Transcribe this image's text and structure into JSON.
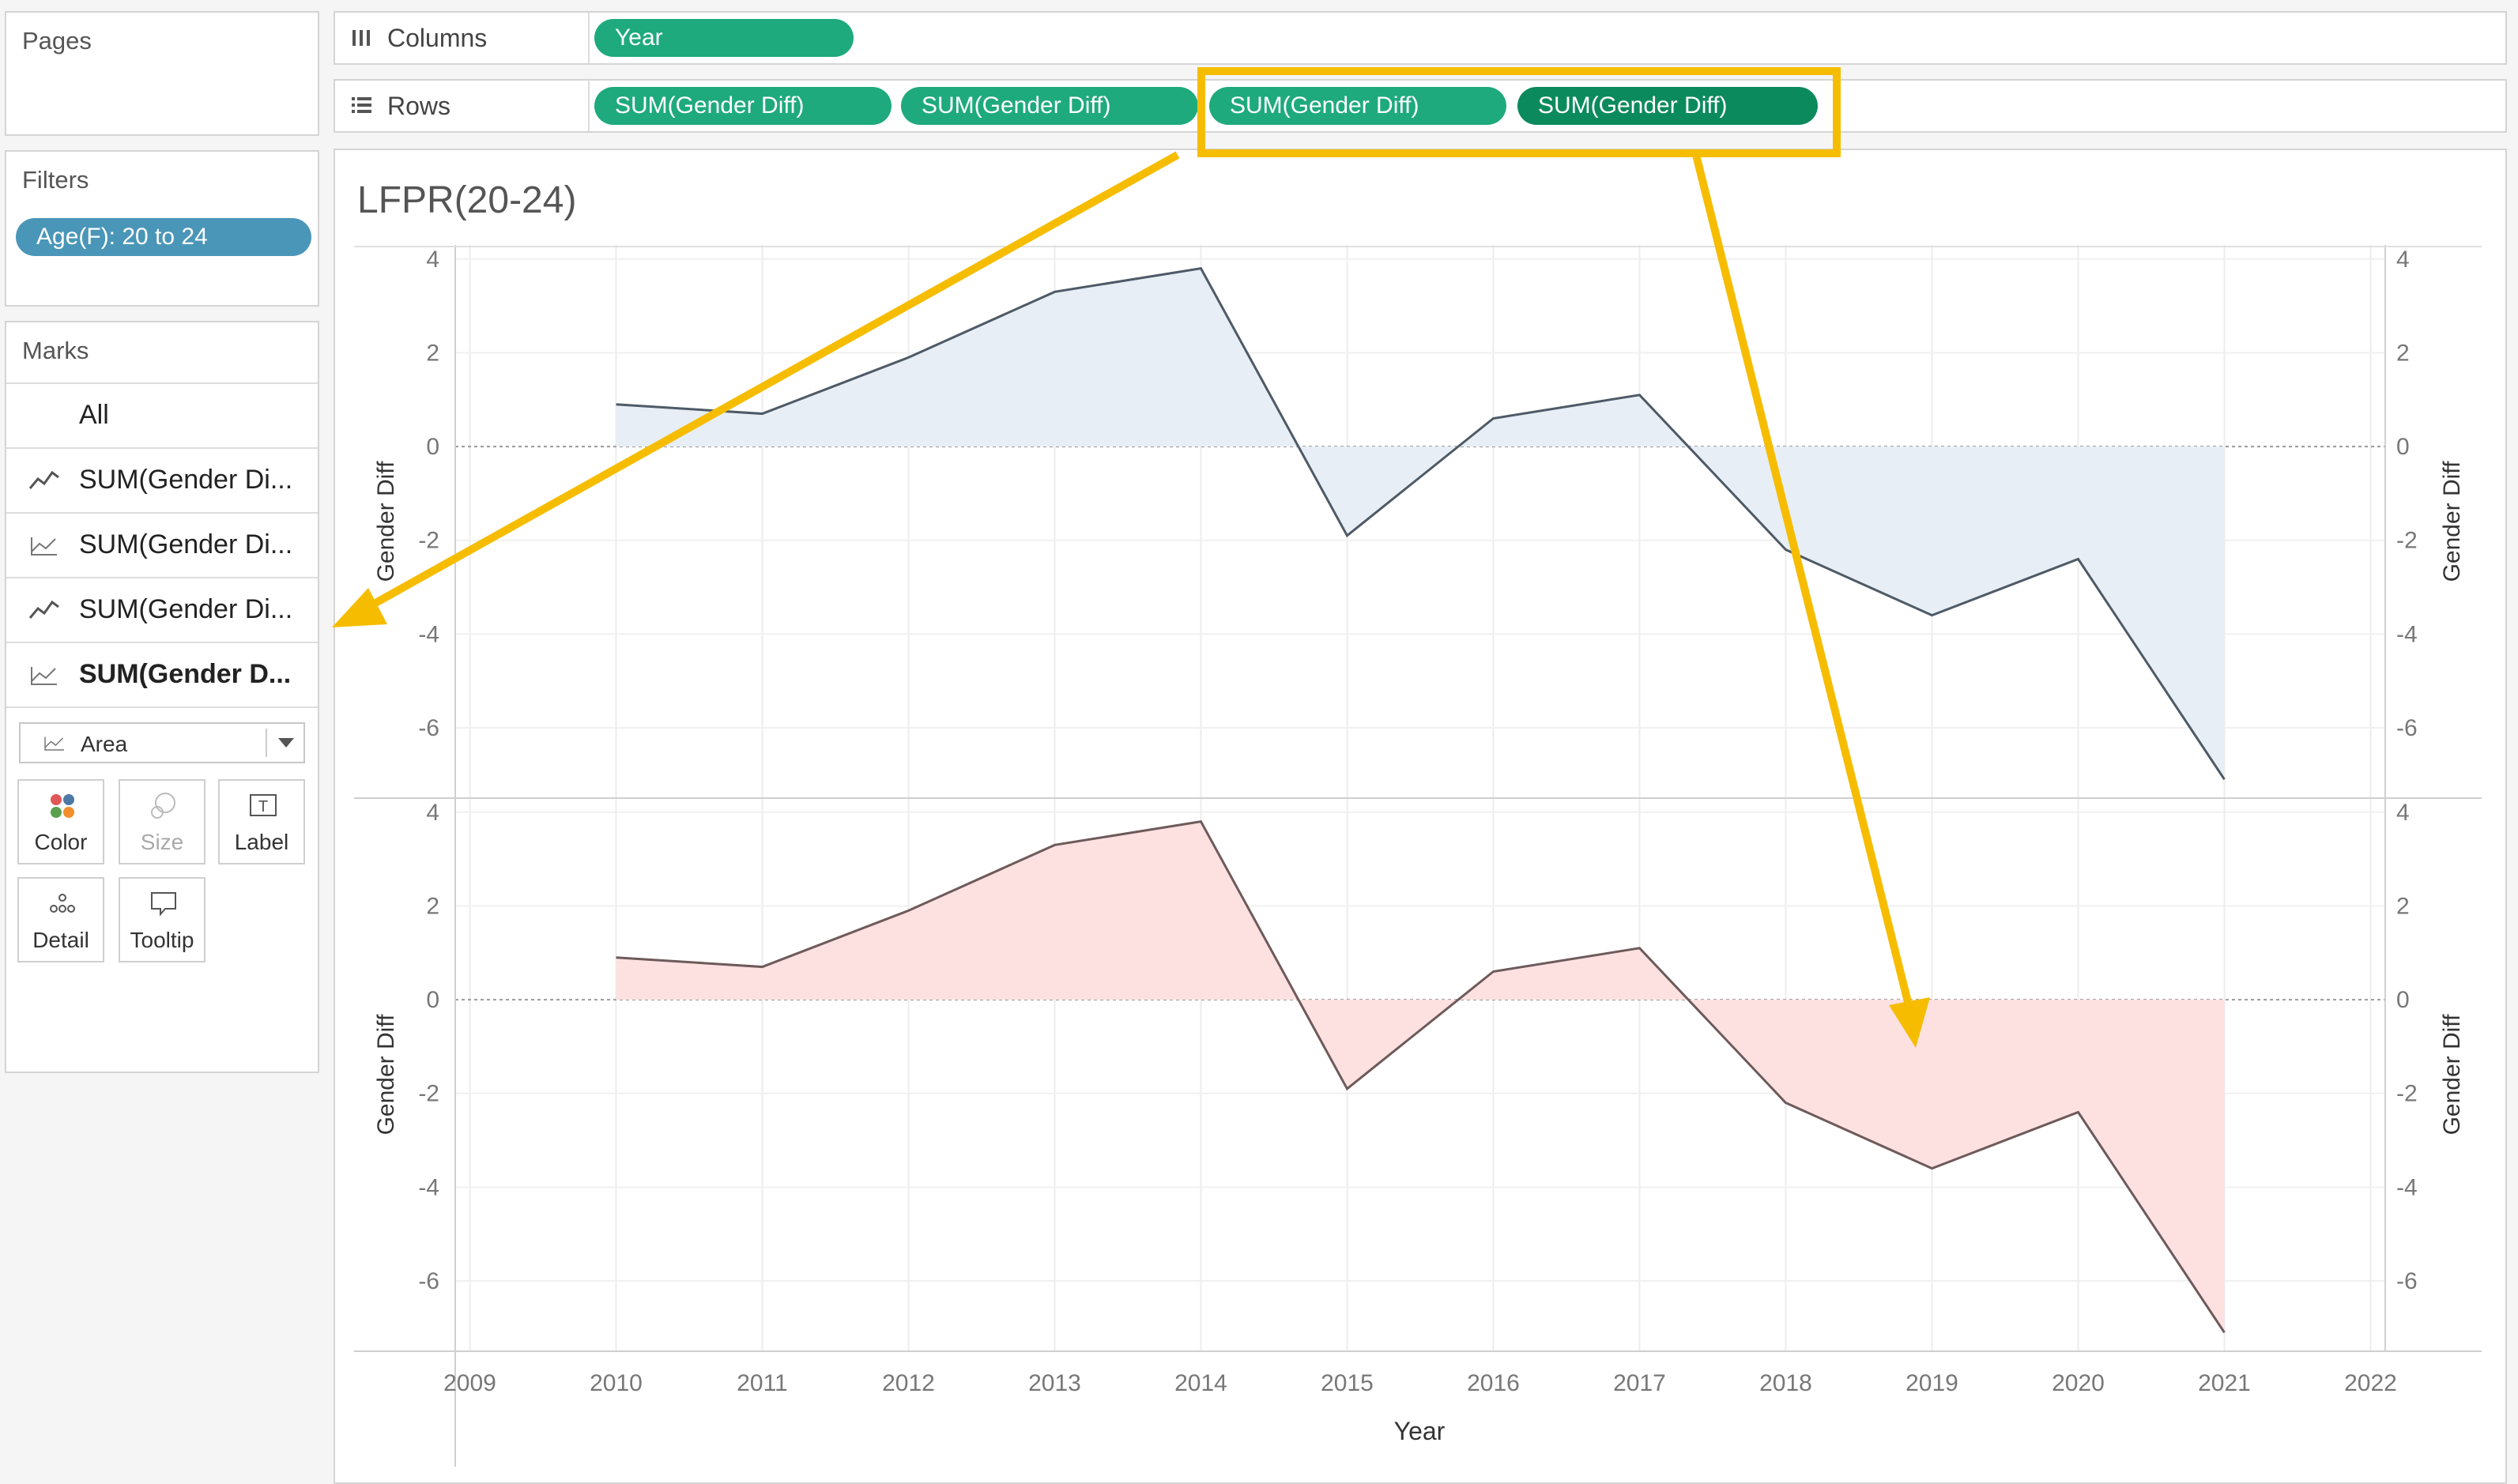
{
  "pages": {
    "title": "Pages"
  },
  "filters": {
    "title": "Filters",
    "pill": "Age(F): 20 to 24"
  },
  "marks": {
    "title": "Marks",
    "all_label": "All",
    "cards": [
      "SUM(Gender Di...",
      "SUM(Gender Di...",
      "SUM(Gender Di...",
      "SUM(Gender D..."
    ],
    "mark_type": "Area",
    "buttons": {
      "color": "Color",
      "size": "Size",
      "label": "Label",
      "detail": "Detail",
      "tooltip": "Tooltip"
    }
  },
  "shelves": {
    "columns_label": "Columns",
    "columns_pill": "Year",
    "rows_label": "Rows",
    "rows_pills": [
      "SUM(Gender Diff)",
      "SUM(Gender Diff)",
      "SUM(Gender Diff)",
      "SUM(Gender Diff)"
    ]
  },
  "colors": {
    "accent_green": "#1eaa7c",
    "accent_green_dark": "#0b8a5e",
    "filter_blue": "#4a96b8",
    "annotation_yellow": "#f6bd00",
    "top_line": "#4e5a66",
    "top_fill": "#e7eef5",
    "bottom_line": "#6e5a5a",
    "bottom_fill": "#fde1e1"
  },
  "chart_data": {
    "type": "area",
    "title": "LFPR(20-24)",
    "xlabel": "Year",
    "ylabel": "Gender Diff",
    "x_ticks": [
      "2009",
      "2010",
      "2011",
      "2012",
      "2013",
      "2014",
      "2015",
      "2016",
      "2017",
      "2018",
      "2019",
      "2020",
      "2021",
      "2022"
    ],
    "y_ticks": [
      "4",
      "2",
      "0",
      "-2",
      "-4",
      "-6"
    ],
    "ylim": [
      -7.5,
      4.3
    ],
    "xlim": [
      2008.9,
      2022.1
    ],
    "x": [
      2010,
      2011,
      2012,
      2013,
      2014,
      2015,
      2016,
      2017,
      2018,
      2019,
      2020,
      2021
    ],
    "series": [
      {
        "values": [
          0.9,
          0.7,
          1.9,
          3.3,
          3.8,
          -1.9,
          0.6,
          1.1,
          -2.2,
          -3.6,
          -2.4,
          -7.1
        ]
      },
      {
        "values": [
          0.9,
          0.7,
          1.9,
          3.3,
          3.8,
          -1.9,
          0.6,
          1.1,
          -2.2,
          -3.6,
          -2.4,
          -7.1
        ]
      }
    ],
    "grid": true
  }
}
